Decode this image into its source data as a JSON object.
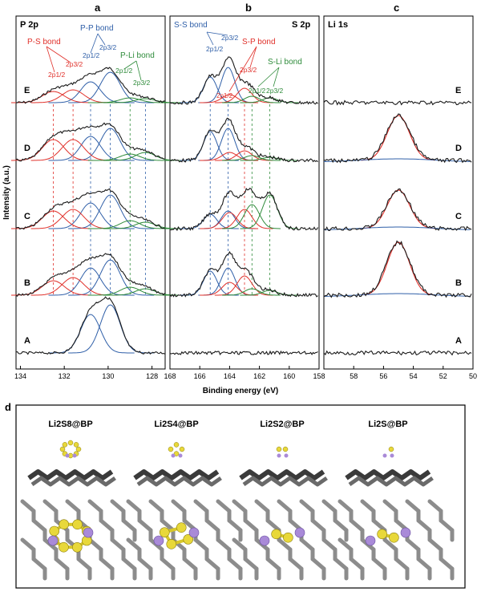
{
  "panel_letters": {
    "a": "a",
    "b": "b",
    "c": "c",
    "d": "d"
  },
  "panel_titles": {
    "a": "P 2p",
    "b": "S 2p",
    "c": "Li 1s"
  },
  "sample_labels": [
    "E",
    "D",
    "C",
    "B",
    "A"
  ],
  "y_axis_label": "Intensity (a.u.)",
  "x_axis_label": "Binding energy (eV)",
  "annotations_a": {
    "ps_bond": "P-S bond",
    "pp_bond": "P-P bond",
    "pli_bond": "P-Li bond",
    "ps_2p12": "2p1/2",
    "ps_2p32": "2p3/2",
    "pp_2p12": "2p1/2",
    "pp_2p32": "2p3/2",
    "pli_2p12": "2p1/2",
    "pli_2p32": "2p3/2"
  },
  "annotations_b": {
    "ss_bond": "S-S bond",
    "sp_bond": "S-P bond",
    "sli_bond": "S-Li bond",
    "ss_2p32": "2p3/2",
    "ss_2p12": "2p1/2",
    "sp_2p12": "2p1/2",
    "sp_2p32": "2p3/2",
    "sli_2p12": "2p1/2",
    "sli_2p32": "2p3/2"
  },
  "colors": {
    "black": "#1a1a1a",
    "blue": "#2f5fa8",
    "red": "#e0302a",
    "green": "#2e8b3a",
    "sulfur": "#e8d83a",
    "lithium": "#a98ad8",
    "phosphorus": "#555555"
  },
  "chart_data": [
    {
      "type": "line",
      "panel": "a",
      "title": "P 2p",
      "xlabel": "Binding energy (eV)",
      "ylabel": "Intensity (a.u.)",
      "xlim": [
        134.2,
        127.4
      ],
      "xticks": [
        134,
        132,
        130,
        128
      ],
      "series": [
        "E",
        "D",
        "C",
        "B",
        "A"
      ],
      "components": {
        "P-P 2p3/2": 129.9,
        "P-P 2p1/2": 130.8,
        "P-S 2p3/2": 131.6,
        "P-S 2p1/2": 132.5,
        "P-Li 2p1/2": 129.0,
        "P-Li 2p3/2": 128.3
      }
    },
    {
      "type": "line",
      "panel": "b",
      "title": "S 2p",
      "xlabel": "Binding energy (eV)",
      "xlim": [
        168,
        158
      ],
      "xticks": [
        168,
        166,
        164,
        162,
        160,
        158
      ],
      "series": [
        "E",
        "D",
        "C",
        "B",
        "A"
      ],
      "components": {
        "S-S 2p3/2": 164.1,
        "S-S 2p1/2": 165.3,
        "S-P 2p1/2": 164.0,
        "S-P 2p3/2": 163.0,
        "S-Li 2p1/2": 162.5,
        "S-Li 2p3/2": 161.3
      }
    },
    {
      "type": "line",
      "panel": "c",
      "title": "Li 1s",
      "xlabel": "Binding energy (eV)",
      "xlim": [
        60,
        50
      ],
      "xticks": [
        58,
        56,
        54,
        52,
        50
      ],
      "series": [
        "E",
        "D",
        "C",
        "B",
        "A"
      ],
      "components": {
        "Li 1s": 55.0
      }
    }
  ],
  "structures": [
    {
      "label": "Li2S8@BP",
      "s": 8,
      "li": 2
    },
    {
      "label": "Li2S4@BP",
      "s": 4,
      "li": 2
    },
    {
      "label": "Li2S2@BP",
      "s": 2,
      "li": 2
    },
    {
      "label": "Li2S@BP",
      "s": 1,
      "li": 2
    }
  ]
}
